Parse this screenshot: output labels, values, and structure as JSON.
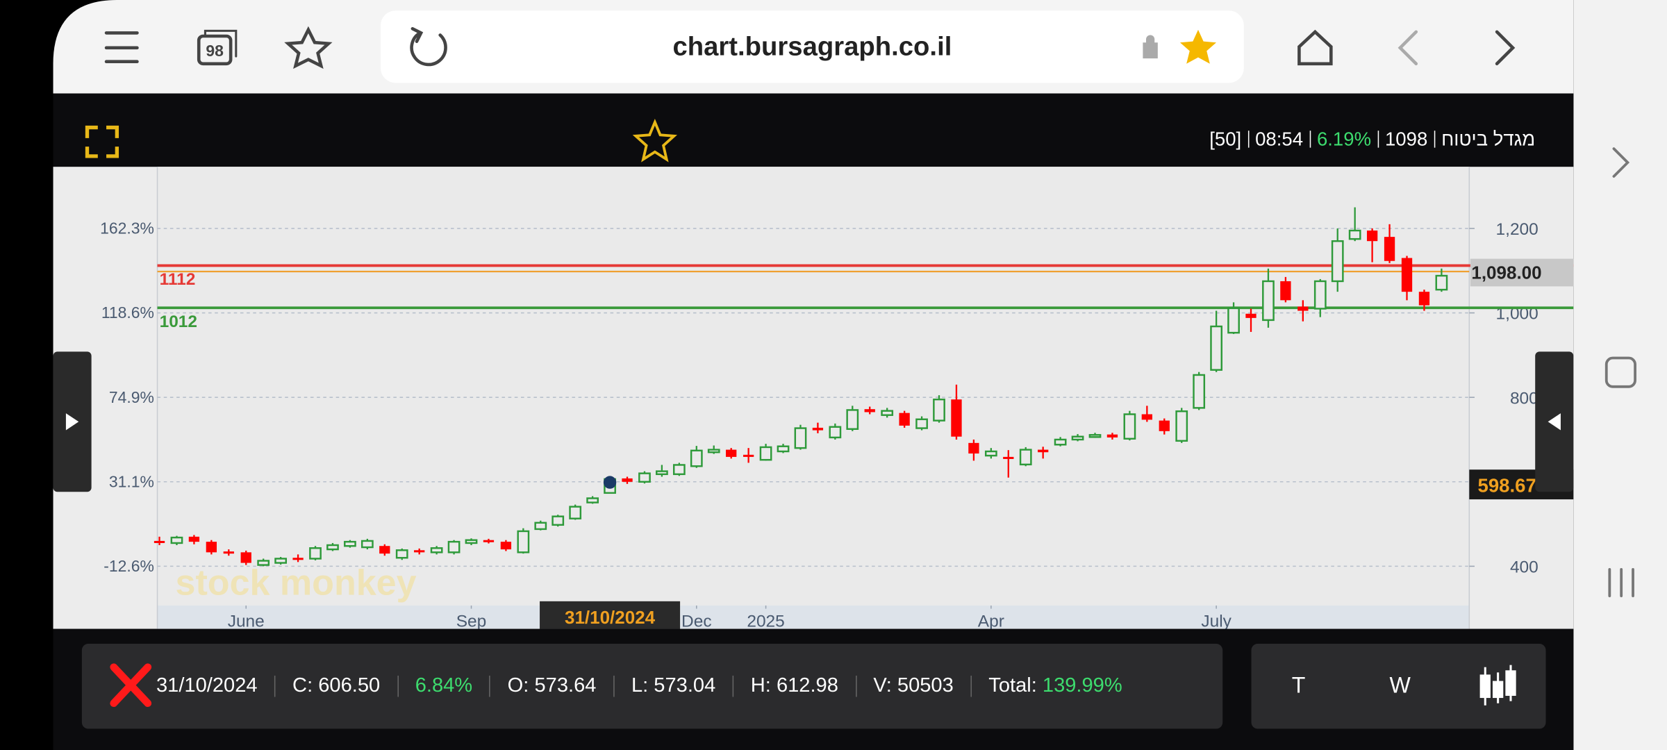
{
  "browser": {
    "tab_count": "98",
    "url": "chart.bursagraph.co.il"
  },
  "header": {
    "items": [
      "מגדל ביטוח",
      "1098",
      "6.19%",
      "08:54",
      "[50]"
    ]
  },
  "chart_data": {
    "type": "candlestick",
    "up_color": "#2e9a3a",
    "down_color": "#ff0000",
    "xlim": [
      -0.12,
      75.6
    ],
    "xticks": [
      {
        "value": 5,
        "label": "June"
      },
      {
        "value": 18,
        "label": "Sep"
      },
      {
        "value": 31,
        "label": "Dec"
      },
      {
        "value": 35,
        "label": "2025"
      },
      {
        "value": 48,
        "label": "Apr"
      },
      {
        "value": 61,
        "label": "July"
      }
    ],
    "ylim": [
      307,
      1346
    ],
    "yticks": [
      {
        "value": 400,
        "label": "-12.6%"
      },
      {
        "value": 600,
        "label": "31.1%"
      },
      {
        "value": 800,
        "label": "74.9%"
      },
      {
        "value": 1000,
        "label": "118.6%"
      },
      {
        "value": 1200,
        "label": "162.3%"
      }
    ],
    "y2lim": [
      307,
      1346
    ],
    "y2ticks": [
      400,
      800,
      {
        "value": 1000,
        "label": "1,000"
      },
      {
        "value": 1200,
        "label": "1,200"
      }
    ],
    "grid": true,
    "series": {
      "open": [
        460,
        455,
        470,
        458,
        435,
        433,
        403,
        408,
        420,
        418,
        440,
        448,
        445,
        448,
        420,
        438,
        433,
        433,
        455,
        462,
        458,
        433,
        488,
        498,
        513,
        551,
        573.64,
        608,
        600,
        618,
        618,
        637,
        670,
        676,
        664,
        652,
        672,
        680,
        728,
        705,
        725,
        772,
        758,
        763,
        727,
        745,
        795,
        692,
        662,
        659,
        641,
        676,
        688,
        700,
        708,
        712,
        702,
        760,
        745,
        697,
        775,
        865,
        953,
        998,
        983,
        1075,
        1015,
        1010,
        1075,
        1175,
        1195,
        1180,
        1130,
        1050,
        1055
      ],
      "high": [
        470,
        472,
        474,
        462,
        440,
        437,
        418,
        422,
        428,
        448,
        455,
        462,
        465,
        452,
        442,
        442,
        448,
        462,
        466,
        465,
        462,
        490,
        508,
        522,
        546,
        566,
        612.98,
        612,
        625,
        640,
        645,
        685,
        686,
        680,
        680,
        690,
        690,
        735,
        740,
        738,
        780,
        778,
        775,
        768,
        755,
        805,
        830,
        700,
        680,
        675,
        682,
        683,
        706,
        713,
        716,
        716,
        768,
        780,
        750,
        775,
        860,
        1005,
        1025,
        1010,
        1105,
        1085,
        1030,
        1080,
        1200,
        1250,
        1200,
        1210,
        1135,
        1055,
        1105
      ],
      "low": [
        450,
        450,
        452,
        428,
        425,
        403,
        400,
        404,
        410,
        414,
        436,
        444,
        440,
        425,
        415,
        428,
        428,
        428,
        450,
        454,
        436,
        430,
        485,
        494,
        510,
        548,
        573.04,
        595,
        596,
        612,
        614,
        633,
        666,
        655,
        645,
        650,
        668,
        676,
        715,
        700,
        720,
        760,
        752,
        728,
        722,
        740,
        700,
        650,
        655,
        610,
        637,
        655,
        684,
        696,
        704,
        700,
        698,
        742,
        712,
        692,
        770,
        860,
        950,
        955,
        965,
        1025,
        980,
        990,
        1050,
        1170,
        1120,
        1118,
        1030,
        1005,
        1050
      ],
      "close": [
        455,
        468,
        458,
        433,
        430,
        408,
        413,
        418,
        415,
        443,
        450,
        458,
        460,
        430,
        438,
        433,
        443,
        458,
        462,
        458,
        440,
        483,
        503,
        518,
        541,
        561,
        606.5,
        600,
        620,
        625,
        640,
        674,
        676,
        659,
        660,
        682,
        684,
        727,
        722,
        730,
        770,
        765,
        768,
        733,
        748,
        795,
        707,
        667,
        672,
        656,
        676,
        670,
        700,
        707,
        711,
        705,
        760,
        747,
        720,
        767,
        853,
        968,
        1011,
        988,
        1075,
        1030,
        1005,
        1075,
        1170,
        1195,
        1170,
        1123,
        1050,
        1018,
        1088
      ]
    },
    "levels": [
      {
        "value": 1112,
        "label": "1112",
        "color": "#e53935"
      },
      {
        "value": 1012,
        "label": "1012",
        "color": "#3a9a3a"
      }
    ],
    "last_price": {
      "value": 1098,
      "label": "1,098.00",
      "color": "#f0a030"
    },
    "crosshair": {
      "x": 26,
      "value": 598.67,
      "label": "598.67",
      "date": "31/10/2024"
    },
    "watermark": "stock monkey"
  },
  "info_bar": {
    "items": [
      {
        "value": "31/10/2024"
      },
      {
        "label": "C:",
        "value": "606.50"
      },
      {
        "value": "6.84%"
      },
      {
        "label": "O:",
        "value": "573.64"
      },
      {
        "label": "L:",
        "value": "573.04"
      },
      {
        "label": "H:",
        "value": "612.98"
      },
      {
        "label": "V:",
        "value": "50503"
      },
      {
        "label": "Total:",
        "value": "139.99%"
      }
    ]
  },
  "toolbar": {
    "buttons": [
      "T",
      "W"
    ]
  }
}
